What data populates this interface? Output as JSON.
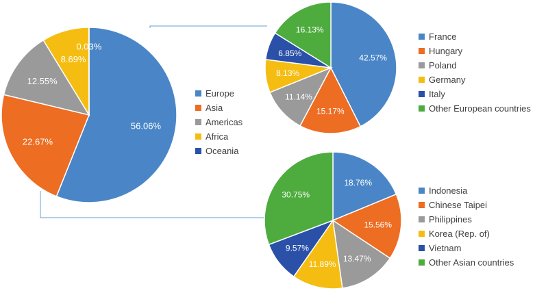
{
  "colors": {
    "blue": "#4a86c7",
    "orange": "#ed6d23",
    "gray": "#9a9a9a",
    "gold": "#f5bd12",
    "navy": "#2a50a8",
    "green": "#4eac3f",
    "connector": "#7fb3d9"
  },
  "chart_data": [
    {
      "type": "pie",
      "id": "regions",
      "labels": [
        "Europe",
        "Asia",
        "Americas",
        "Africa",
        "Oceania"
      ],
      "values": [
        56.06,
        22.67,
        12.55,
        8.69,
        0.03
      ],
      "value_labels": [
        "56.06%",
        "22.67%",
        "12.55%",
        "8.69%",
        "0.03%"
      ],
      "colors": [
        "#4a86c7",
        "#ed6d23",
        "#9a9a9a",
        "#f5bd12",
        "#2a50a8"
      ],
      "legend_position": "right"
    },
    {
      "type": "pie",
      "id": "europe",
      "labels": [
        "France",
        "Hungary",
        "Poland",
        "Germany",
        "Italy",
        "Other European countries"
      ],
      "values": [
        42.57,
        15.17,
        11.14,
        8.13,
        6.85,
        16.13
      ],
      "value_labels": [
        "42.57%",
        "15.17%",
        "11.14%",
        "8.13%",
        "6.85%",
        "16.13%"
      ],
      "colors": [
        "#4a86c7",
        "#ed6d23",
        "#9a9a9a",
        "#f5bd12",
        "#2a50a8",
        "#4eac3f"
      ],
      "legend_position": "right"
    },
    {
      "type": "pie",
      "id": "asia",
      "labels": [
        "Indonesia",
        "Chinese Taipei",
        "Philippines",
        "Korea (Rep. of)",
        "Vietnam",
        "Other Asian countries"
      ],
      "values": [
        18.76,
        15.56,
        13.47,
        11.89,
        9.57,
        30.75
      ],
      "value_labels": [
        "18.76%",
        "15.56%",
        "13.47%",
        "11.89%",
        "9.57%",
        "30.75%"
      ],
      "colors": [
        "#4a86c7",
        "#ed6d23",
        "#9a9a9a",
        "#f5bd12",
        "#2a50a8",
        "#4eac3f"
      ],
      "legend_position": "right"
    }
  ]
}
